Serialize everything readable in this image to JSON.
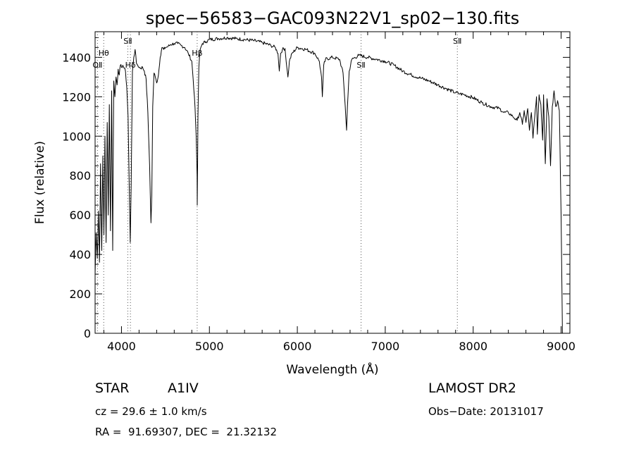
{
  "chart_data": {
    "type": "line",
    "title": "spec−56583−GAC093N22V1_sp02−130.fits",
    "xlabel": "Wavelength (Å)",
    "ylabel": "Flux (relative)",
    "xlim": [
      3700,
      9100
    ],
    "ylim": [
      0,
      1530
    ],
    "xticks": [
      4000,
      5000,
      6000,
      7000,
      8000,
      9000
    ],
    "yticks": [
      0,
      200,
      400,
      600,
      800,
      1000,
      1200,
      1400
    ],
    "grid": false,
    "series": [
      {
        "x": [
          3700,
          3712,
          3725,
          3738,
          3750,
          3762,
          3775,
          3788,
          3800,
          3812,
          3825,
          3838,
          3850,
          3862,
          3875,
          3888,
          3900,
          3912,
          3925,
          3938,
          3950,
          3962,
          3975,
          3988,
          4000,
          4015,
          4030,
          4045,
          4060,
          4075,
          4090,
          4100,
          4110,
          4125,
          4140,
          4155,
          4170,
          4185,
          4200,
          4220,
          4240,
          4260,
          4280,
          4300,
          4320,
          4335,
          4345,
          4355,
          4370,
          4385,
          4400,
          4420,
          4440,
          4460,
          4480,
          4500,
          4530,
          4560,
          4600,
          4640,
          4680,
          4720,
          4760,
          4800,
          4830,
          4850,
          4860,
          4862,
          4866,
          4870,
          4880,
          4895,
          4920,
          4960,
          5000,
          5100,
          5200,
          5300,
          5400,
          5500,
          5600,
          5700,
          5750,
          5780,
          5795,
          5810,
          5830,
          5860,
          5880,
          5893,
          5910,
          5940,
          6000,
          6100,
          6200,
          6250,
          6275,
          6285,
          6300,
          6320,
          6400,
          6480,
          6520,
          6545,
          6560,
          6563,
          6570,
          6590,
          6620,
          6700,
          6800,
          6900,
          7000,
          7100,
          7200,
          7300,
          7400,
          7500,
          7600,
          7700,
          7800,
          7850,
          7900,
          8000,
          8100,
          8200,
          8300,
          8350,
          8400,
          8450,
          8500,
          8530,
          8560,
          8580,
          8600,
          8620,
          8640,
          8662,
          8680,
          8700,
          8720,
          8730,
          8750,
          8770,
          8790,
          8800,
          8820,
          8840,
          8860,
          8880,
          8900,
          8920,
          8940,
          8960,
          8980,
          9000,
          9010,
          9015
        ],
        "y": [
          300,
          510,
          380,
          620,
          360,
          860,
          420,
          900,
          500,
          1000,
          460,
          1070,
          600,
          1160,
          520,
          1230,
          420,
          1280,
          1200,
          1300,
          1260,
          1340,
          1310,
          1360,
          1350,
          1360,
          1345,
          1330,
          1250,
          1100,
          700,
          460,
          750,
          1330,
          1400,
          1440,
          1370,
          1360,
          1350,
          1345,
          1350,
          1330,
          1290,
          1120,
          850,
          560,
          700,
          1150,
          1320,
          1300,
          1270,
          1310,
          1400,
          1450,
          1440,
          1450,
          1455,
          1465,
          1470,
          1470,
          1460,
          1450,
          1420,
          1380,
          1200,
          1000,
          800,
          650,
          850,
          1100,
          1350,
          1440,
          1470,
          1480,
          1490,
          1495,
          1500,
          1495,
          1490,
          1485,
          1475,
          1460,
          1450,
          1420,
          1330,
          1420,
          1440,
          1445,
          1350,
          1300,
          1380,
          1420,
          1450,
          1440,
          1420,
          1380,
          1300,
          1200,
          1360,
          1390,
          1400,
          1390,
          1320,
          1150,
          1030,
          1060,
          1150,
          1330,
          1390,
          1410,
          1400,
          1390,
          1380,
          1360,
          1330,
          1310,
          1295,
          1280,
          1260,
          1240,
          1220,
          1215,
          1210,
          1195,
          1170,
          1150,
          1140,
          1120,
          1120,
          1100,
          1080,
          1120,
          1060,
          1130,
          1070,
          1140,
          1030,
          1120,
          990,
          1100,
          1200,
          1010,
          1210,
          1160,
          980,
          1210,
          860,
          1190,
          1100,
          850,
          1150,
          1230,
          1150,
          1180,
          1130,
          600,
          200,
          0
        ]
      }
    ],
    "line_markers": [
      {
        "label": "OⅡ",
        "x": 3727,
        "label_row": "lower"
      },
      {
        "label": "Hθ",
        "x": 3798,
        "label_row": "upper"
      },
      {
        "label": "SⅡ",
        "x": 4072,
        "label_row": "top"
      },
      {
        "label": "Hδ",
        "x": 4102,
        "label_row": "lower"
      },
      {
        "label": "Hβ",
        "x": 4861,
        "label_row": "upper"
      },
      {
        "label": "SⅡ",
        "x": 6725,
        "label_row": "lower"
      },
      {
        "label": "SⅡ",
        "x": 7820,
        "label_row": "top"
      }
    ]
  },
  "info": {
    "class_label": "STAR",
    "subclass": "A1IV",
    "survey": "LAMOST DR2",
    "cz": "cz = 29.6 ± 1.0 km/s",
    "obs_date": "Obs−Date: 20131017",
    "coords": "RA =  91.69307, DEC =  21.32132"
  }
}
